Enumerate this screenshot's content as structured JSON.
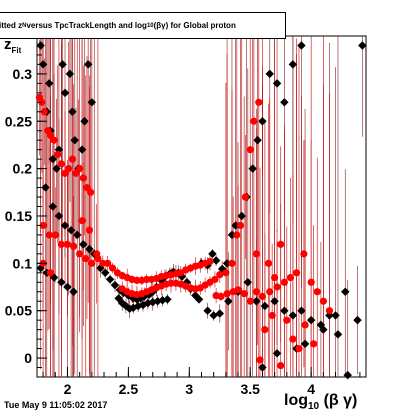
{
  "title": {
    "prefix": "itted  z",
    "sub": "N",
    "mid": " versus TpcTrackLength and log",
    "sub2": "10",
    "suffix": "(βγ) for Global proton"
  },
  "timestamp": "Tue May  9 11:05:02 2017",
  "colors": {
    "fill_black": "#000000",
    "fill_red": "#ff0000",
    "bar_dark": "#8b1a1a",
    "bar_red": "#cc0000"
  },
  "chart_data": {
    "type": "scatter",
    "title": "itted  zN versus TpcTrackLength and log10(βγ) for Global proton",
    "xlabel": "log10 (β γ)",
    "ylabel": "zFit",
    "xlim": [
      1.75,
      4.45
    ],
    "ylim": [
      -0.02,
      0.34
    ],
    "x_ticks": [
      "2",
      "2.5",
      "3",
      "3.5",
      "4"
    ],
    "y_ticks": [
      "0",
      "0.05",
      "0.1",
      "0.15",
      "0.2",
      "0.25",
      "0.3"
    ],
    "series": [
      {
        "color": "black",
        "points": [
          [
            1.78,
            0.33
          ],
          [
            1.8,
            0.31
          ],
          [
            1.85,
            0.29
          ],
          [
            1.83,
            0.26
          ],
          [
            1.86,
            0.24
          ],
          [
            1.88,
            0.21
          ],
          [
            1.91,
            0.2
          ],
          [
            1.93,
            0.22
          ],
          [
            1.96,
            0.31
          ],
          [
            1.98,
            0.28
          ],
          [
            2.02,
            0.3
          ],
          [
            2.04,
            0.26
          ],
          [
            2.06,
            0.23
          ],
          [
            2.09,
            0.2
          ],
          [
            2.12,
            0.22
          ],
          [
            2.14,
            0.25
          ],
          [
            2.17,
            0.31
          ],
          [
            2.2,
            0.27
          ],
          [
            1.82,
            0.18
          ],
          [
            1.88,
            0.16
          ],
          [
            1.93,
            0.15
          ],
          [
            1.98,
            0.14
          ],
          [
            2.03,
            0.135
          ],
          [
            2.08,
            0.13
          ],
          [
            2.13,
            0.12
          ],
          [
            2.18,
            0.115
          ],
          [
            2.22,
            0.11
          ],
          [
            1.78,
            0.095
          ],
          [
            1.83,
            0.09
          ],
          [
            1.89,
            0.085
          ],
          [
            1.95,
            0.08
          ],
          [
            2.0,
            0.075
          ],
          [
            2.05,
            0.07
          ],
          [
            2.27,
            0.095
          ],
          [
            2.31,
            0.09
          ],
          [
            2.35,
            0.083
          ],
          [
            2.39,
            0.077
          ],
          [
            2.43,
            0.072
          ],
          [
            2.46,
            0.069
          ],
          [
            2.5,
            0.066
          ],
          [
            2.54,
            0.063
          ],
          [
            2.57,
            0.062
          ],
          [
            2.6,
            0.063
          ],
          [
            2.63,
            0.065
          ],
          [
            2.67,
            0.067
          ],
          [
            2.7,
            0.07
          ],
          [
            2.73,
            0.075
          ],
          [
            2.77,
            0.082
          ],
          [
            2.8,
            0.086
          ],
          [
            2.84,
            0.089
          ],
          [
            2.87,
            0.091
          ],
          [
            2.91,
            0.09
          ],
          [
            2.94,
            0.086
          ],
          [
            2.98,
            0.08
          ],
          [
            3.01,
            0.073
          ],
          [
            3.05,
            0.066
          ],
          [
            3.08,
            0.062
          ],
          [
            2.42,
            0.063
          ],
          [
            2.45,
            0.058
          ],
          [
            2.48,
            0.055
          ],
          [
            2.51,
            0.052
          ],
          [
            2.54,
            0.053
          ],
          [
            2.58,
            0.055
          ],
          [
            2.62,
            0.056
          ],
          [
            2.66,
            0.058
          ],
          [
            2.7,
            0.059
          ],
          [
            2.74,
            0.06
          ],
          [
            2.78,
            0.061
          ],
          [
            2.82,
            0.062
          ],
          [
            3.1,
            0.1
          ],
          [
            3.15,
            0.098
          ],
          [
            3.19,
            0.11
          ],
          [
            3.22,
            0.103
          ],
          [
            3.27,
            0.094
          ],
          [
            3.31,
            0.1
          ],
          [
            3.35,
            0.13
          ],
          [
            3.38,
            0.14
          ],
          [
            3.43,
            0.15
          ],
          [
            3.47,
            0.17
          ],
          [
            3.52,
            0.2
          ],
          [
            3.56,
            0.23
          ],
          [
            3.6,
            0.25
          ],
          [
            3.66,
            0.3
          ],
          [
            3.72,
            0.29
          ],
          [
            3.78,
            0.27
          ],
          [
            3.85,
            0.31
          ],
          [
            3.92,
            0.33
          ],
          [
            3.15,
            0.05
          ],
          [
            3.2,
            0.045
          ],
          [
            3.25,
            0.047
          ],
          [
            3.32,
            0.06
          ],
          [
            3.4,
            0.07
          ],
          [
            3.48,
            0.08
          ],
          [
            3.55,
            0.06
          ],
          [
            3.62,
            0.055
          ],
          [
            3.7,
            0.06
          ],
          [
            3.78,
            0.05
          ],
          [
            3.85,
            0.045
          ],
          [
            3.92,
            0.05
          ],
          [
            4.0,
            0.04
          ],
          [
            4.08,
            0.035
          ],
          [
            4.15,
            0.045
          ],
          [
            4.22,
            0.025
          ],
          [
            4.28,
            0.07
          ],
          [
            4.38,
            0.04
          ],
          [
            4.42,
            0.33
          ],
          [
            4.2,
            0.045
          ],
          [
            4.1,
            0.03
          ],
          [
            3.95,
            0.015
          ],
          [
            3.88,
            0.01
          ],
          [
            3.72,
            0.005
          ],
          [
            3.6,
            -0.01
          ],
          [
            4.3,
            -0.018
          ]
        ]
      },
      {
        "color": "red",
        "points": [
          [
            1.77,
            0.275
          ],
          [
            1.79,
            0.27
          ],
          [
            1.81,
            0.26
          ],
          [
            1.84,
            0.24
          ],
          [
            1.86,
            0.235
          ],
          [
            1.89,
            0.23
          ],
          [
            1.92,
            0.215
          ],
          [
            1.95,
            0.205
          ],
          [
            1.98,
            0.195
          ],
          [
            2.01,
            0.2
          ],
          [
            2.04,
            0.21
          ],
          [
            2.07,
            0.195
          ],
          [
            2.1,
            0.2
          ],
          [
            2.13,
            0.19
          ],
          [
            2.16,
            0.18
          ],
          [
            2.19,
            0.175
          ],
          [
            1.8,
            0.14
          ],
          [
            1.85,
            0.13
          ],
          [
            1.9,
            0.13
          ],
          [
            1.95,
            0.12
          ],
          [
            2.0,
            0.12
          ],
          [
            2.05,
            0.118
          ],
          [
            2.1,
            0.11
          ],
          [
            2.15,
            0.105
          ],
          [
            2.2,
            0.1
          ],
          [
            2.24,
            0.11
          ],
          [
            1.8,
            0.1
          ],
          [
            1.86,
            0.09
          ],
          [
            2.12,
            0.145
          ],
          [
            2.18,
            0.135
          ],
          [
            2.25,
            0.105
          ],
          [
            2.29,
            0.1
          ],
          [
            2.33,
            0.1
          ],
          [
            2.37,
            0.095
          ],
          [
            2.41,
            0.09
          ],
          [
            2.45,
            0.087
          ],
          [
            2.49,
            0.085
          ],
          [
            2.53,
            0.083
          ],
          [
            2.57,
            0.082
          ],
          [
            2.61,
            0.082
          ],
          [
            2.65,
            0.083
          ],
          [
            2.69,
            0.083
          ],
          [
            2.73,
            0.084
          ],
          [
            2.77,
            0.086
          ],
          [
            2.81,
            0.087
          ],
          [
            2.85,
            0.088
          ],
          [
            2.89,
            0.089
          ],
          [
            2.93,
            0.09
          ],
          [
            2.97,
            0.093
          ],
          [
            3.01,
            0.095
          ],
          [
            3.05,
            0.097
          ],
          [
            3.09,
            0.098
          ],
          [
            3.13,
            0.1
          ],
          [
            3.17,
            0.102
          ],
          [
            2.45,
            0.073
          ],
          [
            2.49,
            0.07
          ],
          [
            2.53,
            0.068
          ],
          [
            2.57,
            0.067
          ],
          [
            2.61,
            0.068
          ],
          [
            2.65,
            0.07
          ],
          [
            2.69,
            0.072
          ],
          [
            2.73,
            0.074
          ],
          [
            2.77,
            0.076
          ],
          [
            2.81,
            0.078
          ],
          [
            2.85,
            0.079
          ],
          [
            2.89,
            0.079
          ],
          [
            2.93,
            0.078
          ],
          [
            2.97,
            0.076
          ],
          [
            3.01,
            0.074
          ],
          [
            3.05,
            0.073
          ],
          [
            3.09,
            0.074
          ],
          [
            3.13,
            0.077
          ],
          [
            3.17,
            0.08
          ],
          [
            3.21,
            0.083
          ],
          [
            3.25,
            0.088
          ],
          [
            3.3,
            0.09
          ],
          [
            3.35,
            0.1
          ],
          [
            3.39,
            0.13
          ],
          [
            3.42,
            0.14
          ],
          [
            3.46,
            0.17
          ],
          [
            3.5,
            0.22
          ],
          [
            3.53,
            0.25
          ],
          [
            3.57,
            0.27
          ],
          [
            3.22,
            0.066
          ],
          [
            3.26,
            0.065
          ],
          [
            3.31,
            0.068
          ],
          [
            3.36,
            0.07
          ],
          [
            3.4,
            0.072
          ],
          [
            3.45,
            0.068
          ],
          [
            3.5,
            0.06
          ],
          [
            3.55,
            0.07
          ],
          [
            3.6,
            0.065
          ],
          [
            3.66,
            0.07
          ],
          [
            3.72,
            0.075
          ],
          [
            3.78,
            0.08
          ],
          [
            3.83,
            0.085
          ],
          [
            3.88,
            0.09
          ],
          [
            3.94,
            0.11
          ],
          [
            4.0,
            0.08
          ],
          [
            4.05,
            0.07
          ],
          [
            4.1,
            0.06
          ],
          [
            4.15,
            0.05
          ],
          [
            3.65,
            0.1
          ],
          [
            3.7,
            0.085
          ],
          [
            3.75,
            0.12
          ],
          [
            3.55,
            0.11
          ],
          [
            3.85,
            0.02
          ],
          [
            3.9,
            0.01
          ],
          [
            3.62,
            0.03
          ],
          [
            3.68,
            0.045
          ],
          [
            3.8,
            0.04
          ],
          [
            3.95,
            0.035
          ],
          [
            4.02,
            0.015
          ],
          [
            3.75,
            -0.008
          ],
          [
            3.58,
            -0.002
          ]
        ]
      }
    ]
  }
}
